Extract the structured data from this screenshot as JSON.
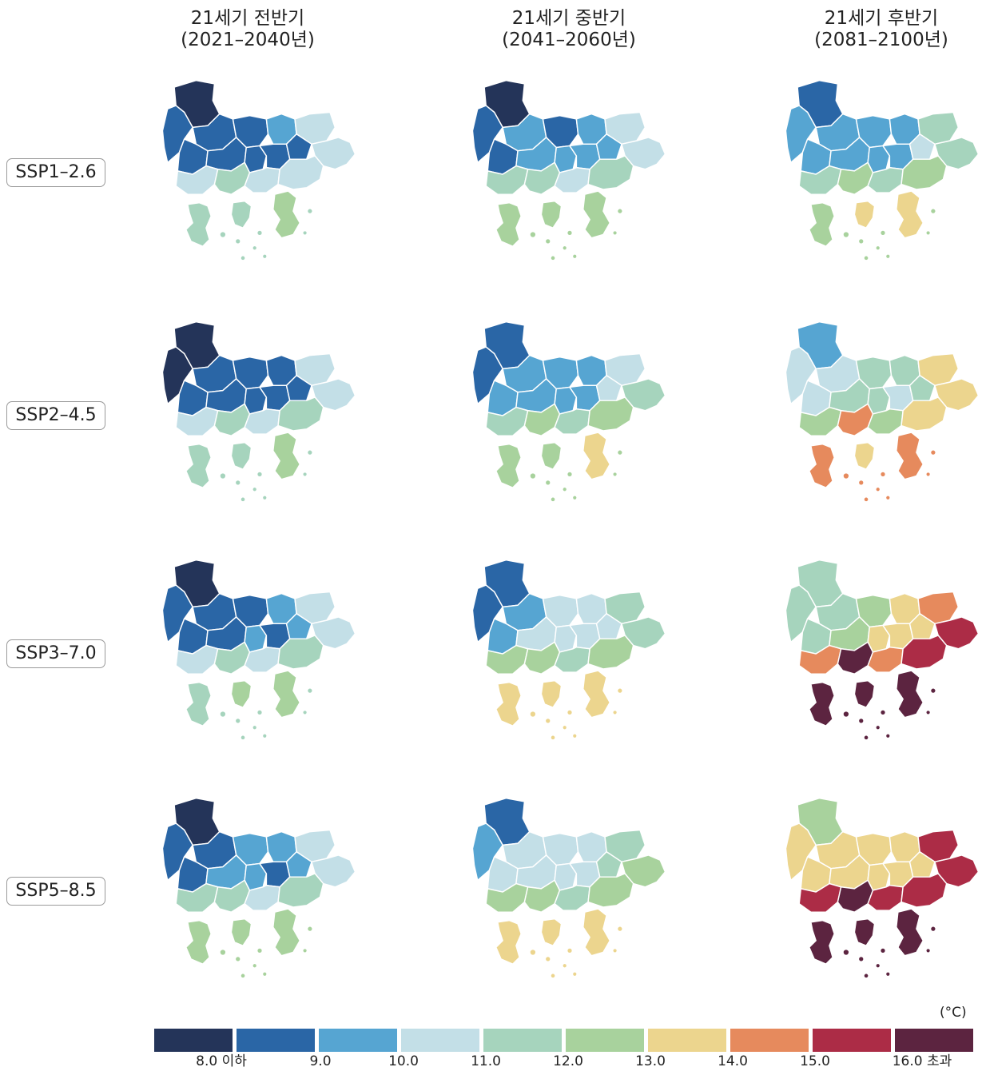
{
  "columns": [
    {
      "line1": "21세기 전반기",
      "line2": "(2021–2040년)"
    },
    {
      "line1": "21세기 중반기",
      "line2": "(2041–2060년)"
    },
    {
      "line1": "21세기 후반기",
      "line2": "(2081–2100년)"
    }
  ],
  "rows": [
    {
      "label": "SSP1–2.6"
    },
    {
      "label": "SSP2–4.5"
    },
    {
      "label": "SSP3–7.0"
    },
    {
      "label": "SSP5–8.5"
    }
  ],
  "legend": {
    "unit": "(°C)",
    "colors": [
      "#243459",
      "#2a66a6",
      "#56a5d2",
      "#c3dfe7",
      "#a6d4bd",
      "#a8d29d",
      "#ecd58e",
      "#e68a5d",
      "#ac2c46",
      "#5c2440"
    ],
    "labels": [
      "8.0 이하",
      "9.0",
      "10.0",
      "11.0",
      "12.0",
      "13.0",
      "14.0",
      "15.0",
      "16.0 초과"
    ]
  },
  "map_panels": [
    [
      [
        0,
        1,
        1,
        1,
        1,
        2,
        3,
        1,
        1,
        1,
        1,
        3,
        3,
        4,
        3,
        3,
        4,
        4,
        5
      ],
      [
        0,
        1,
        2,
        1,
        1,
        2,
        3,
        2,
        2,
        2,
        2,
        3,
        4,
        4,
        3,
        4,
        5,
        5,
        5
      ],
      [
        1,
        2,
        2,
        2,
        2,
        2,
        4,
        2,
        2,
        2,
        3,
        4,
        4,
        5,
        4,
        5,
        5,
        6,
        6
      ]
    ],
    [
      [
        0,
        0,
        1,
        1,
        1,
        1,
        3,
        1,
        1,
        1,
        1,
        3,
        3,
        4,
        3,
        4,
        4,
        4,
        5
      ],
      [
        1,
        1,
        2,
        2,
        2,
        2,
        3,
        2,
        2,
        2,
        3,
        4,
        4,
        5,
        4,
        5,
        5,
        5,
        6
      ],
      [
        2,
        3,
        3,
        3,
        4,
        4,
        6,
        4,
        4,
        3,
        4,
        6,
        5,
        7,
        5,
        6,
        7,
        6,
        7
      ]
    ],
    [
      [
        0,
        1,
        1,
        1,
        1,
        2,
        3,
        1,
        2,
        1,
        2,
        3,
        3,
        4,
        3,
        4,
        4,
        5,
        5
      ],
      [
        1,
        1,
        2,
        2,
        3,
        3,
        4,
        3,
        3,
        3,
        3,
        4,
        5,
        5,
        4,
        5,
        6,
        6,
        6
      ],
      [
        4,
        4,
        4,
        4,
        5,
        6,
        7,
        5,
        6,
        6,
        6,
        8,
        7,
        9,
        7,
        8,
        9,
        9,
        9
      ]
    ],
    [
      [
        0,
        1,
        1,
        1,
        2,
        2,
        3,
        2,
        2,
        1,
        2,
        3,
        4,
        4,
        3,
        4,
        5,
        5,
        5
      ],
      [
        1,
        2,
        3,
        3,
        3,
        3,
        4,
        3,
        3,
        3,
        4,
        5,
        5,
        5,
        4,
        5,
        6,
        6,
        6
      ],
      [
        5,
        6,
        6,
        6,
        6,
        6,
        8,
        6,
        6,
        6,
        6,
        8,
        8,
        9,
        8,
        8,
        9,
        9,
        9
      ]
    ]
  ]
}
